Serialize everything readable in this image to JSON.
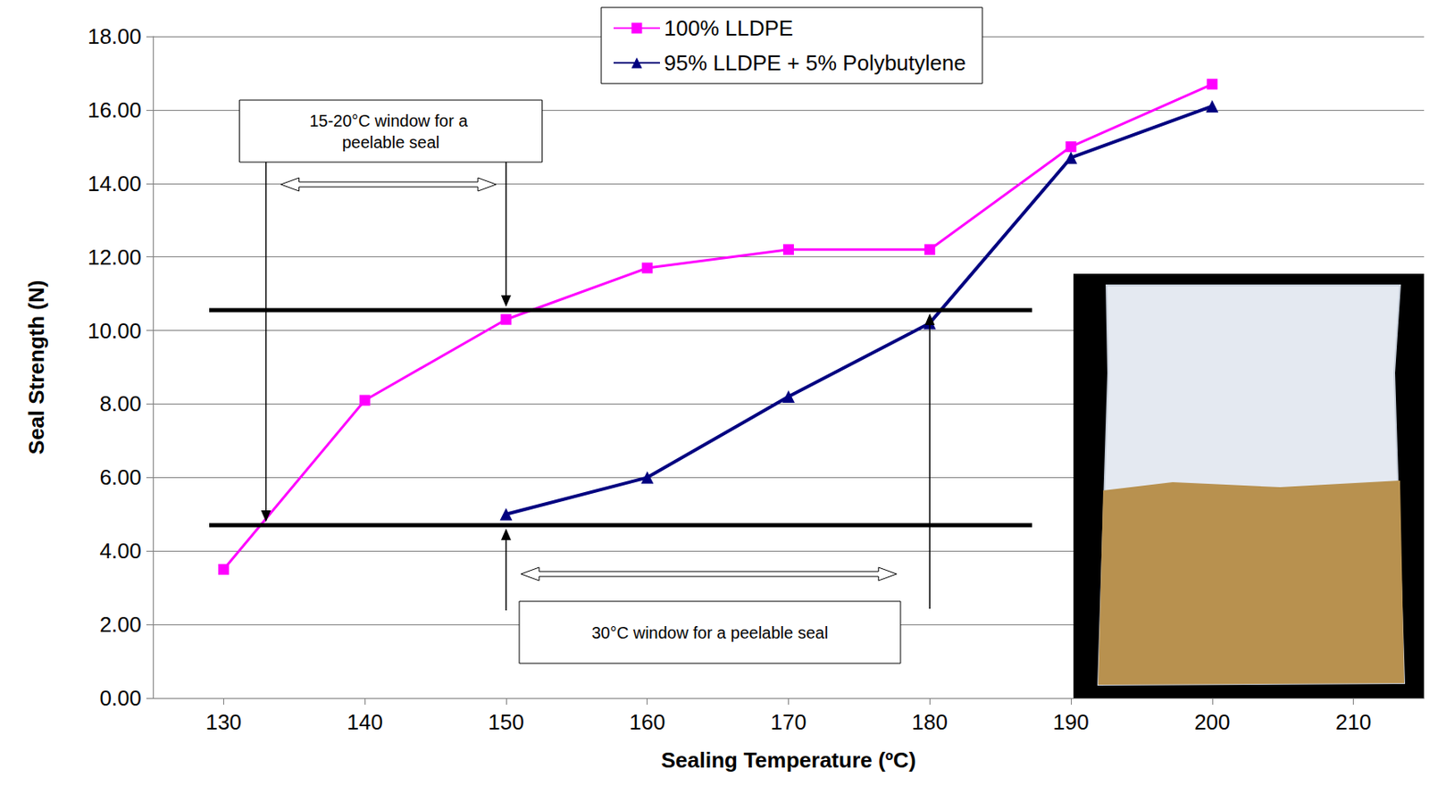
{
  "chart_data": {
    "type": "line",
    "x_label": "Sealing Temperature (ºC)",
    "y_label": "Seal Strength (N)",
    "x": [
      130,
      140,
      150,
      160,
      170,
      180,
      190,
      200
    ],
    "series": [
      {
        "name": "100% LLDPE",
        "color": "#ff00ff",
        "marker": "square",
        "values": [
          3.5,
          8.1,
          10.3,
          11.7,
          12.2,
          12.2,
          15.0,
          16.7
        ]
      },
      {
        "name": "95% LLDPE + 5% Polybutylene",
        "color": "#000080",
        "marker": "triangle",
        "values": [
          null,
          null,
          5.0,
          6.0,
          8.2,
          10.2,
          14.7,
          16.1
        ]
      }
    ],
    "xlim": [
      125,
      215
    ],
    "xticks": [
      130,
      140,
      150,
      160,
      170,
      180,
      190,
      200,
      210
    ],
    "ylim": [
      0,
      18
    ],
    "yticks": [
      {
        "value": 0,
        "label": "0.00"
      },
      {
        "value": 2,
        "label": "2.00"
      },
      {
        "value": 4,
        "label": "4.00"
      },
      {
        "value": 6,
        "label": "6.00"
      },
      {
        "value": 8,
        "label": "8.00"
      },
      {
        "value": 10,
        "label": "10.00"
      },
      {
        "value": 12,
        "label": "12.00"
      },
      {
        "value": 14,
        "label": "14.00"
      },
      {
        "value": 16,
        "label": "16.00"
      },
      {
        "value": 18,
        "label": "18.00"
      }
    ],
    "grid": true,
    "legend": "top",
    "reference_lines": [
      10.55,
      4.7
    ],
    "annotations": [
      {
        "text": "15-20°C window for a peelable seal",
        "window": [
          133,
          150
        ]
      },
      {
        "text": "30°C window for a peelable seal",
        "window": [
          150,
          180
        ]
      }
    ]
  }
}
